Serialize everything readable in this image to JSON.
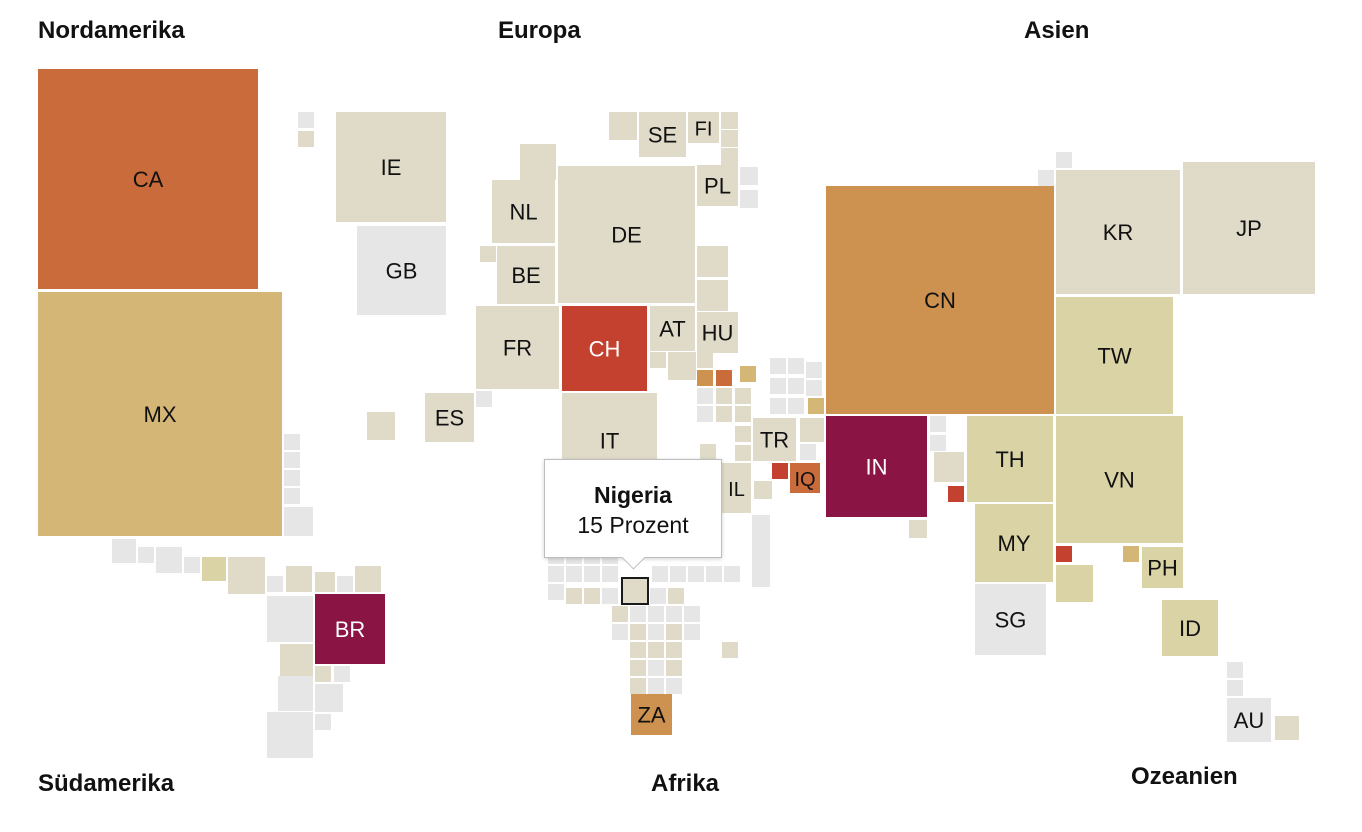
{
  "regions": {
    "north_america": "Nordamerika",
    "europe": "Europa",
    "asia": "Asien",
    "south_america": "Südamerika",
    "africa": "Afrika",
    "oceania": "Ozeanien"
  },
  "tooltip": {
    "country": "Nigeria",
    "value_label": "15 Prozent"
  },
  "colors": {
    "empty": "#e6e6e6",
    "level1": "#e0dbc8",
    "level2": "#d9d3a5",
    "level3": "#d4b677",
    "level4": "#cd9150",
    "level5": "#c96b3b",
    "level6": "#c4402f",
    "level7": "#8a1443",
    "highlight_border": "#1a1a1a"
  },
  "map_data": {
    "type": "tile-cartogram",
    "countries": [
      {
        "code": "CA",
        "color": "level5"
      },
      {
        "code": "MX",
        "color": "level3"
      },
      {
        "code": "BR",
        "color": "level7"
      },
      {
        "code": "IE",
        "color": "level1"
      },
      {
        "code": "GB",
        "color": "empty"
      },
      {
        "code": "SE",
        "color": "level1"
      },
      {
        "code": "FI",
        "color": "level1"
      },
      {
        "code": "NL",
        "color": "level1"
      },
      {
        "code": "DE",
        "color": "level1"
      },
      {
        "code": "PL",
        "color": "level1"
      },
      {
        "code": "BE",
        "color": "level1"
      },
      {
        "code": "FR",
        "color": "level1"
      },
      {
        "code": "CH",
        "color": "level6"
      },
      {
        "code": "AT",
        "color": "level1"
      },
      {
        "code": "HU",
        "color": "level1"
      },
      {
        "code": "ES",
        "color": "level1"
      },
      {
        "code": "IT",
        "color": "level1"
      },
      {
        "code": "TR",
        "color": "level1"
      },
      {
        "code": "IL",
        "color": "level1"
      },
      {
        "code": "IQ",
        "color": "level5"
      },
      {
        "code": "IN",
        "color": "level7"
      },
      {
        "code": "CN",
        "color": "level4"
      },
      {
        "code": "KR",
        "color": "level1"
      },
      {
        "code": "JP",
        "color": "level1"
      },
      {
        "code": "TW",
        "color": "level2"
      },
      {
        "code": "TH",
        "color": "level2"
      },
      {
        "code": "VN",
        "color": "level2"
      },
      {
        "code": "MY",
        "color": "level2"
      },
      {
        "code": "SG",
        "color": "empty"
      },
      {
        "code": "PH",
        "color": "level2"
      },
      {
        "code": "ID",
        "color": "level2"
      },
      {
        "code": "AU",
        "color": "empty"
      },
      {
        "code": "ZA",
        "color": "level4"
      },
      {
        "code": "NG",
        "color": "level1",
        "highlighted": true
      }
    ]
  }
}
